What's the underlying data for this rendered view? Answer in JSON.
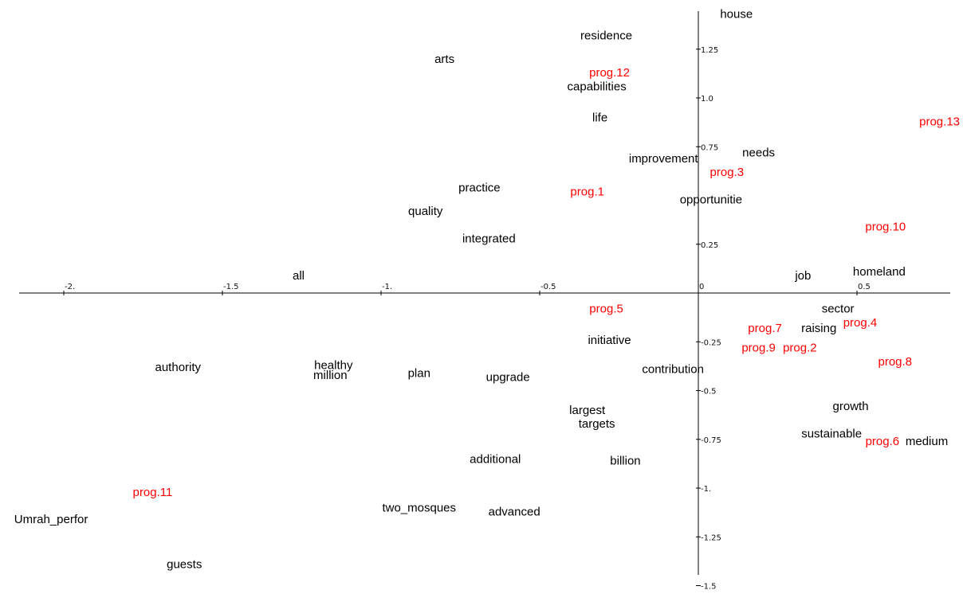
{
  "chart_data": {
    "type": "scatter",
    "title": "",
    "xlabel": "",
    "ylabel": "",
    "xlim": [
      -2.2,
      0.8
    ],
    "ylim": [
      -1.5,
      1.42
    ],
    "grid": false,
    "legend": "none",
    "x_ticks": [
      {
        "value": -2.0,
        "label": "-2."
      },
      {
        "value": -1.5,
        "label": "-1.5"
      },
      {
        "value": -1.0,
        "label": "-1."
      },
      {
        "value": -0.5,
        "label": "-0.5"
      },
      {
        "value": 0.0,
        "label": "0"
      },
      {
        "value": 0.5,
        "label": "0.5"
      }
    ],
    "y_ticks": [
      {
        "value": 1.25,
        "label": "1.25"
      },
      {
        "value": 1.0,
        "label": "1.0"
      },
      {
        "value": 0.75,
        "label": "0.75"
      },
      {
        "value": 0.25,
        "label": "0.25"
      },
      {
        "value": -0.25,
        "label": "-0.25"
      },
      {
        "value": -0.5,
        "label": "-0.5"
      },
      {
        "value": -0.75,
        "label": "-0.75"
      },
      {
        "value": -1.0,
        "label": "-1."
      },
      {
        "value": -1.25,
        "label": "-1.25"
      },
      {
        "value": -1.5,
        "label": "-1.5"
      }
    ],
    "colors": {
      "word": "#000000",
      "program": "#ff0000",
      "axis": "#000000"
    },
    "series": [
      {
        "kind": "word",
        "points": [
          {
            "label": "house",
            "x": 0.12,
            "y": 1.43
          },
          {
            "label": "residence",
            "x": -0.29,
            "y": 1.32
          },
          {
            "label": "arts",
            "x": -0.8,
            "y": 1.2
          },
          {
            "label": "capabilities",
            "x": -0.32,
            "y": 1.06
          },
          {
            "label": "life",
            "x": -0.31,
            "y": 0.9
          },
          {
            "label": "improvement",
            "x": -0.11,
            "y": 0.69
          },
          {
            "label": "needs",
            "x": 0.19,
            "y": 0.72
          },
          {
            "label": "practice",
            "x": -0.69,
            "y": 0.54
          },
          {
            "label": "opportunitie",
            "x": 0.04,
            "y": 0.48
          },
          {
            "label": "quality",
            "x": -0.86,
            "y": 0.42
          },
          {
            "label": "integrated",
            "x": -0.66,
            "y": 0.28
          },
          {
            "label": "all",
            "x": -1.26,
            "y": 0.09
          },
          {
            "label": "job",
            "x": 0.33,
            "y": 0.09
          },
          {
            "label": "homeland",
            "x": 0.57,
            "y": 0.11
          },
          {
            "label": "sector",
            "x": 0.44,
            "y": -0.08
          },
          {
            "label": "raising",
            "x": 0.38,
            "y": -0.18
          },
          {
            "label": "initiative",
            "x": -0.28,
            "y": -0.24
          },
          {
            "label": "authority",
            "x": -1.64,
            "y": -0.38
          },
          {
            "label": "healthy",
            "x": -1.15,
            "y": -0.37
          },
          {
            "label": "million",
            "x": -1.16,
            "y": -0.42
          },
          {
            "label": "plan",
            "x": -0.88,
            "y": -0.41
          },
          {
            "label": "upgrade",
            "x": -0.6,
            "y": -0.43
          },
          {
            "label": "contribution",
            "x": -0.08,
            "y": -0.39
          },
          {
            "label": "largest",
            "x": -0.35,
            "y": -0.6
          },
          {
            "label": "targets",
            "x": -0.32,
            "y": -0.67
          },
          {
            "label": "growth",
            "x": 0.48,
            "y": -0.58
          },
          {
            "label": "sustainable",
            "x": 0.42,
            "y": -0.72
          },
          {
            "label": "medium",
            "x": 0.72,
            "y": -0.76
          },
          {
            "label": "additional",
            "x": -0.64,
            "y": -0.85
          },
          {
            "label": "billion",
            "x": -0.23,
            "y": -0.86
          },
          {
            "label": "Umrah_perfor",
            "x": -2.04,
            "y": -1.16
          },
          {
            "label": "two_mosques",
            "x": -0.88,
            "y": -1.1
          },
          {
            "label": "advanced",
            "x": -0.58,
            "y": -1.12
          },
          {
            "label": "guests",
            "x": -1.62,
            "y": -1.39
          }
        ]
      },
      {
        "kind": "program",
        "points": [
          {
            "label": "prog.12",
            "x": -0.28,
            "y": 1.13
          },
          {
            "label": "prog.13",
            "x": 0.81,
            "y": 0.88
          },
          {
            "label": "prog.3",
            "x": 0.09,
            "y": 0.62
          },
          {
            "label": "prog.1",
            "x": -0.35,
            "y": 0.52
          },
          {
            "label": "prog.10",
            "x": 0.59,
            "y": 0.34
          },
          {
            "label": "prog.5",
            "x": -0.29,
            "y": -0.08
          },
          {
            "label": "prog.7",
            "x": 0.21,
            "y": -0.18
          },
          {
            "label": "prog.4",
            "x": 0.51,
            "y": -0.15
          },
          {
            "label": "prog.9",
            "x": 0.19,
            "y": -0.28
          },
          {
            "label": "prog.2",
            "x": 0.32,
            "y": -0.28
          },
          {
            "label": "prog.8",
            "x": 0.62,
            "y": -0.35
          },
          {
            "label": "prog.6",
            "x": 0.58,
            "y": -0.76
          },
          {
            "label": "prog.11",
            "x": -1.72,
            "y": -1.02
          }
        ]
      }
    ]
  }
}
